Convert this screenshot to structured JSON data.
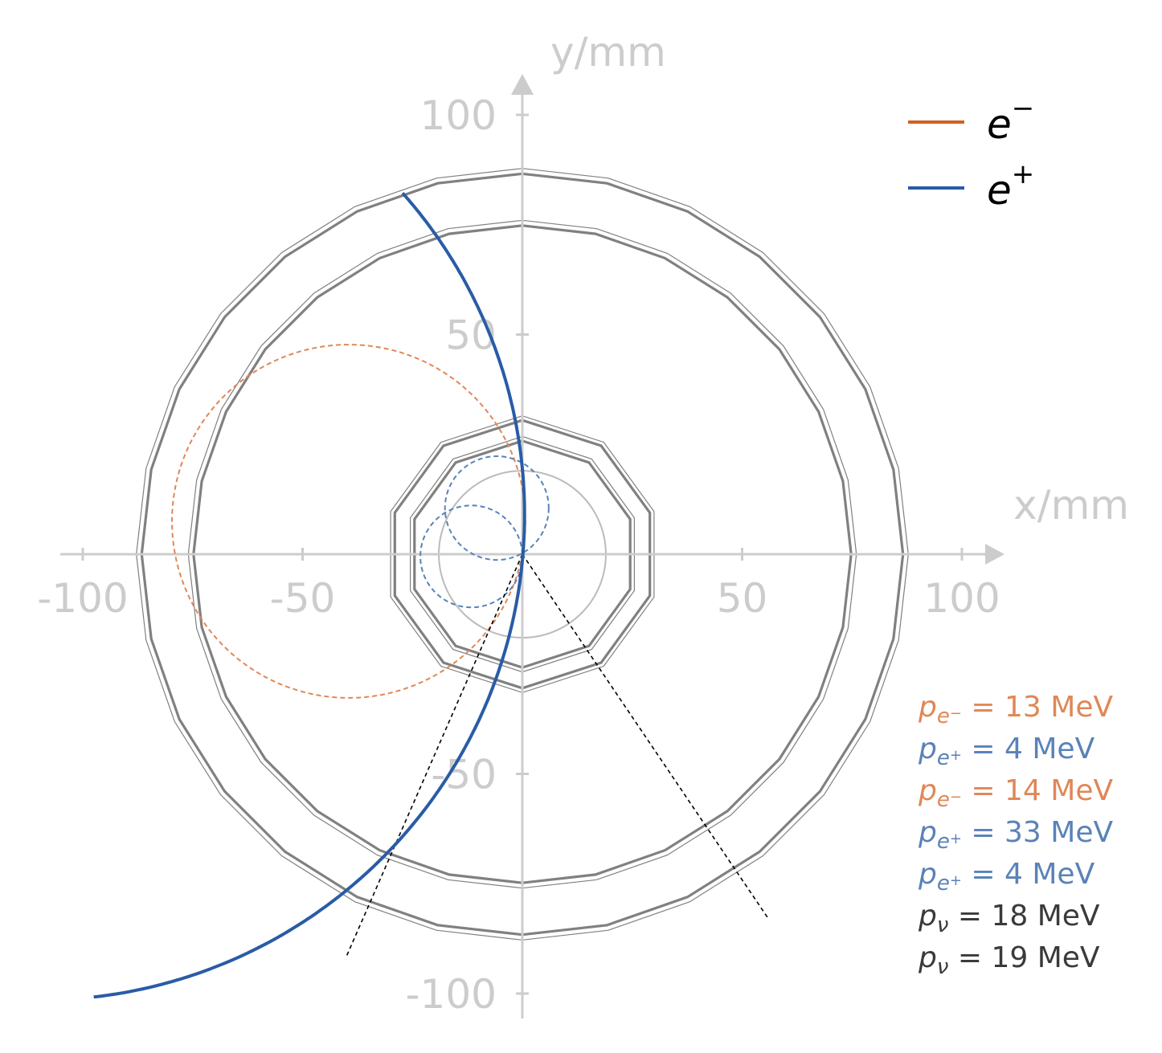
{
  "chart_data": {
    "type": "scatter",
    "xlabel": "x/mm",
    "ylabel": "y/mm",
    "xlim": [
      -105,
      105
    ],
    "ylim": [
      -105,
      105
    ],
    "x_ticks": [
      -100,
      -50,
      50,
      100
    ],
    "y_ticks": [
      100,
      50,
      -50,
      -100
    ],
    "x_tick_labels": [
      "-100",
      "-50",
      "50",
      "100"
    ],
    "y_tick_labels": [
      "100",
      "50",
      "-50",
      "-100"
    ],
    "grid": false,
    "legend_position": "top-right",
    "colors": {
      "axis": "#cccccc",
      "detector": "#808080",
      "inner_ring": "#bbbbbb",
      "e_minus": "#d2601f",
      "e_plus": "#295ca6",
      "e_minus_light": "#e08757",
      "e_plus_light": "#5a82b8",
      "neutrino": "#000000",
      "neutrino_text": "#3a3a3a"
    },
    "legend": [
      {
        "series": "e_minus",
        "base": "e",
        "sup": "−"
      },
      {
        "series": "e_plus",
        "base": "e",
        "sup": "+"
      }
    ],
    "detector_layers": [
      {
        "sides": 10,
        "circumradius": 31.5,
        "width": "thin"
      },
      {
        "sides": 10,
        "circumradius": 30.5,
        "width": "thick"
      },
      {
        "sides": 10,
        "circumradius": 26.8,
        "width": "thin"
      },
      {
        "sides": 10,
        "circumradius": 25.8,
        "width": "thick"
      },
      {
        "sides": 28,
        "circumradius": 87.8,
        "width": "thin"
      },
      {
        "sides": 28,
        "circumradius": 86.6,
        "width": "thick"
      },
      {
        "sides": 28,
        "circumradius": 76.0,
        "width": "thin"
      },
      {
        "sides": 28,
        "circumradius": 74.8,
        "width": "thick"
      }
    ],
    "inner_circle": {
      "cx": 0,
      "cy": 0,
      "r": 19
    },
    "series": [
      {
        "id": "e_plus",
        "kind": "helix_arc",
        "center": [
          -110,
          9
        ],
        "radius": 110.5,
        "theta_start_deg": 41.5,
        "theta_end_deg": -83.5
      }
    ],
    "tracks": [
      {
        "id": "e_minus_1",
        "series": "e_minus",
        "center": [
          -39.5,
          7.5
        ],
        "radius": 40.2
      },
      {
        "id": "e_plus_2",
        "series": "e_plus",
        "center": [
          -5.8,
          10.5
        ],
        "radius": 11.8
      },
      {
        "id": "e_plus_3",
        "series": "e_plus",
        "center": [
          -11.6,
          -0.5
        ],
        "radius": 11.6
      }
    ],
    "neutrinos": [
      {
        "id": "nu_1",
        "from": [
          0,
          0
        ],
        "to": [
          -40,
          -91.5
        ]
      },
      {
        "id": "nu_2",
        "from": [
          0,
          0
        ],
        "to": [
          56,
          -83
        ]
      }
    ],
    "annotations": [
      {
        "series": "e_minus",
        "particle": "e",
        "charge": "−",
        "value": "13 MeV"
      },
      {
        "series": "e_plus",
        "particle": "e",
        "charge": "+",
        "value": "4 MeV"
      },
      {
        "series": "e_minus",
        "particle": "e",
        "charge": "−",
        "value": "14 MeV"
      },
      {
        "series": "e_plus",
        "particle": "e",
        "charge": "+",
        "value": "33 MeV"
      },
      {
        "series": "e_plus",
        "particle": "e",
        "charge": "+",
        "value": "4 MeV"
      },
      {
        "series": "neutrino",
        "particle": "ν",
        "charge": "",
        "value": "18 MeV"
      },
      {
        "series": "neutrino",
        "particle": "ν",
        "charge": "",
        "value": "19 MeV"
      }
    ]
  }
}
